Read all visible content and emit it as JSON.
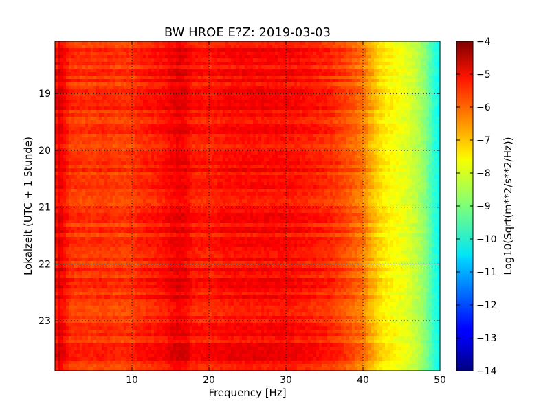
{
  "chart_data": {
    "type": "heatmap",
    "title": "BW HROE E?Z: 2019-03-03",
    "xlabel": "Frequency [Hz]",
    "ylabel": "Lokalzeit (UTC + 1 Stunde)",
    "xlim": [
      0,
      50
    ],
    "ylim": [
      23.88,
      18.08
    ],
    "x_ticks": [
      10,
      20,
      30,
      40,
      50
    ],
    "x_tick_labels": [
      "10",
      "20",
      "30",
      "40",
      "50"
    ],
    "y_ticks": [
      19,
      20,
      21,
      22,
      23
    ],
    "y_tick_labels": [
      "19",
      "20",
      "21",
      "22",
      "23"
    ],
    "grid": true,
    "colormap": "jet",
    "colorbar": {
      "label": "Log10(Sqrt(m**2/s**2/Hz))",
      "range": [
        -14,
        -4
      ],
      "ticks": [
        -4,
        -5,
        -6,
        -7,
        -8,
        -9,
        -10,
        -11,
        -12,
        -13,
        -14
      ],
      "tick_labels": [
        "−4",
        "−5",
        "−6",
        "−7",
        "−8",
        "−9",
        "−10",
        "−11",
        "−12",
        "−13",
        "−14"
      ]
    },
    "spectral_profile": {
      "frequency_hz": [
        0,
        0.5,
        1,
        2,
        5,
        6,
        8,
        10,
        11,
        14,
        16,
        16.5,
        17,
        18,
        20,
        22,
        25,
        30,
        33,
        36,
        38,
        40,
        41,
        42,
        43,
        44,
        45,
        46,
        47,
        48,
        49,
        50
      ],
      "value": [
        -5.6,
        -4.9,
        -5.2,
        -5.7,
        -5.8,
        -5.7,
        -5.8,
        -5.8,
        -5.6,
        -5.4,
        -5.05,
        -5.1,
        -5.15,
        -5.45,
        -5.5,
        -5.35,
        -5.3,
        -5.3,
        -5.45,
        -5.65,
        -6.0,
        -6.4,
        -6.9,
        -7.3,
        -7.6,
        -7.75,
        -7.9,
        -8.1,
        -8.4,
        -8.8,
        -9.6,
        -10.2
      ]
    }
  }
}
